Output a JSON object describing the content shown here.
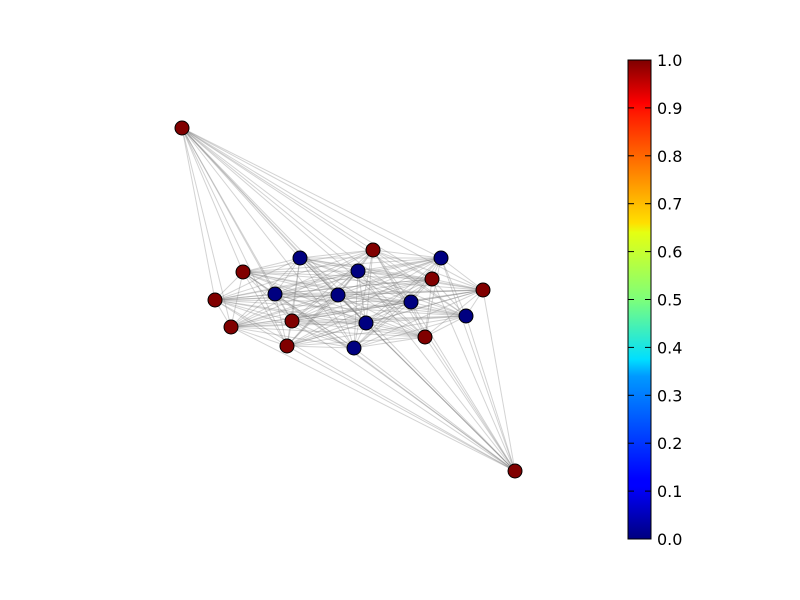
{
  "graph": {
    "nodes": [
      {
        "id": 0,
        "value": 1.0
      },
      {
        "id": 1,
        "value": 1.0
      },
      {
        "id": 2,
        "value": 1.0
      },
      {
        "id": 3,
        "value": 1.0
      },
      {
        "id": 4,
        "value": 1.0
      },
      {
        "id": 5,
        "value": 1.0
      },
      {
        "id": 6,
        "value": 1.0
      },
      {
        "id": 7,
        "value": 1.0
      },
      {
        "id": 8,
        "value": 1.0
      },
      {
        "id": 9,
        "value": 1.0
      },
      {
        "id": 10,
        "value": 1.0
      },
      {
        "id": 11,
        "value": 0.0
      },
      {
        "id": 12,
        "value": 0.0
      },
      {
        "id": 13,
        "value": 0.0
      },
      {
        "id": 14,
        "value": 0.0
      },
      {
        "id": 15,
        "value": 0.0
      },
      {
        "id": 16,
        "value": 0.0
      },
      {
        "id": 17,
        "value": 0.0
      },
      {
        "id": 18,
        "value": 0.0
      },
      {
        "id": 19,
        "value": 0.0
      }
    ],
    "edge_color": "#808080",
    "node_outline_color": "#000000"
  },
  "colorbar": {
    "colormap": "jet",
    "range": [
      0.0,
      1.0
    ],
    "ticks": [
      "0.0",
      "0.1",
      "0.2",
      "0.3",
      "0.4",
      "0.5",
      "0.6",
      "0.7",
      "0.8",
      "0.9",
      "1.0"
    ]
  }
}
